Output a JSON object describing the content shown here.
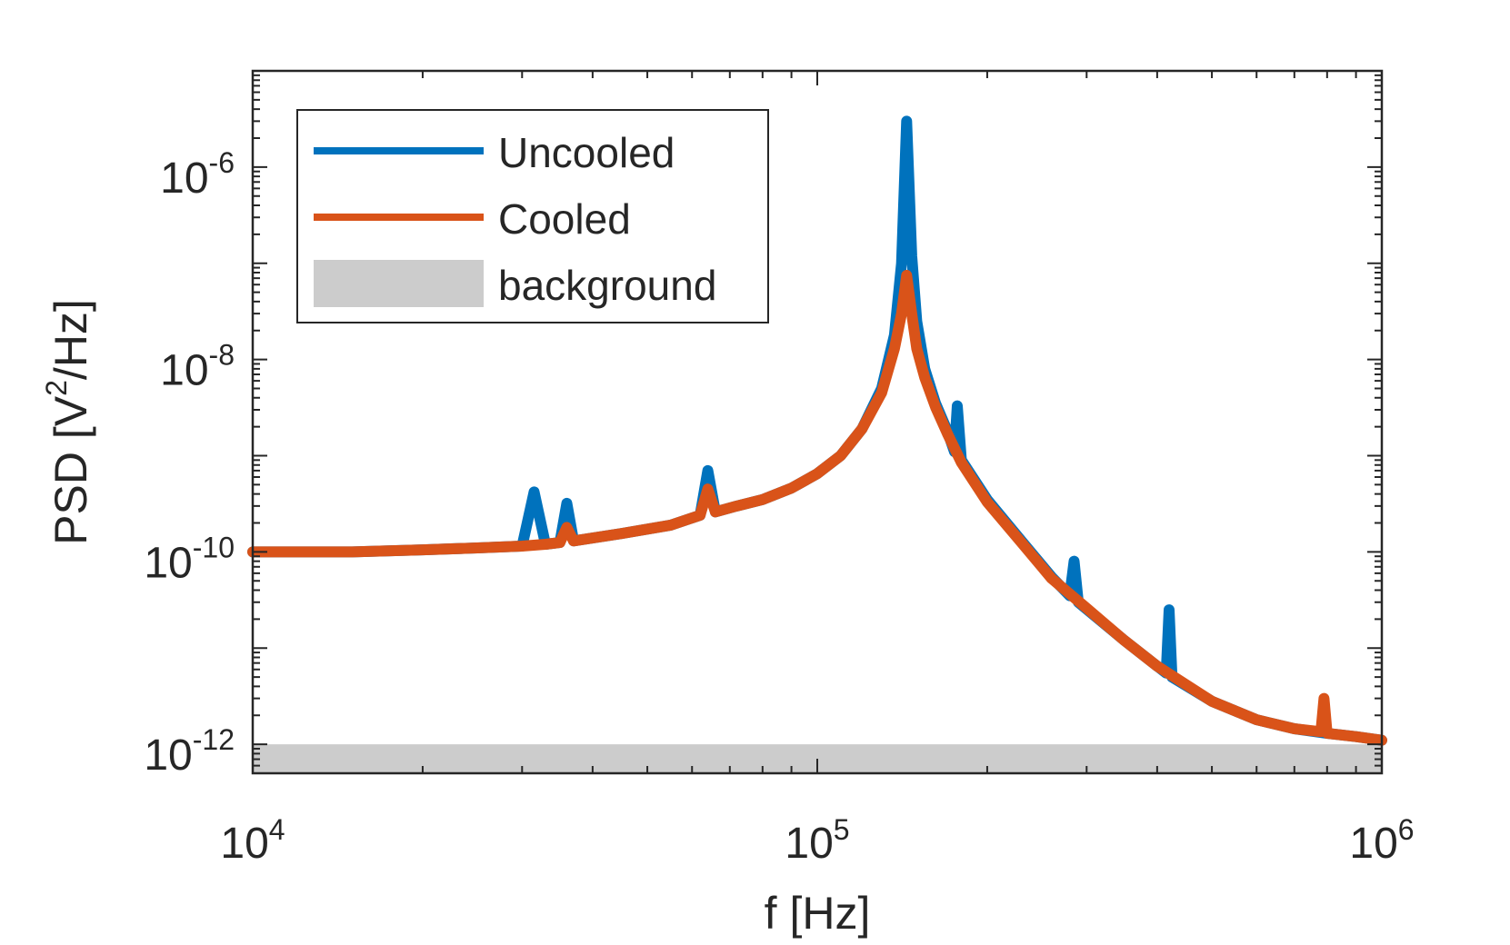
{
  "chart_data": {
    "type": "line",
    "xscale": "log",
    "yscale": "log",
    "xlim": [
      10000,
      1000000
    ],
    "ylim": [
      5e-13,
      1e-05
    ],
    "xlabel": "f [Hz]",
    "ylabel": {
      "prefix": "PSD [V",
      "sup": "2",
      "suffix": "/Hz]"
    },
    "x_ticks": [
      {
        "value": 10000,
        "base": "10",
        "exp": "4"
      },
      {
        "value": 100000,
        "base": "10",
        "exp": "5"
      },
      {
        "value": 1000000,
        "base": "10",
        "exp": "6"
      }
    ],
    "y_ticks": [
      {
        "value": 1e-12,
        "base": "10",
        "exp": "-12"
      },
      {
        "value": 1e-10,
        "base": "10",
        "exp": "-10"
      },
      {
        "value": 1e-08,
        "base": "10",
        "exp": "-8"
      },
      {
        "value": 1e-06,
        "base": "10",
        "exp": "-6"
      }
    ],
    "legend": {
      "location": "top-left",
      "entries": [
        {
          "label": "Uncooled",
          "color": "#0072BD",
          "kind": "line"
        },
        {
          "label": "Cooled",
          "color": "#D95319",
          "kind": "line"
        },
        {
          "label": "background",
          "color": "#CCCCCC",
          "kind": "patch"
        }
      ]
    },
    "background_band": {
      "label": "background",
      "level": 1e-12,
      "color": "#CCCCCC"
    },
    "series": [
      {
        "name": "Uncooled",
        "color": "#0072BD",
        "points": [
          [
            10000,
            1e-10
          ],
          [
            12000,
            1e-10
          ],
          [
            15000,
            1e-10
          ],
          [
            20000,
            1.05e-10
          ],
          [
            25000,
            1.1e-10
          ],
          [
            30000,
            1.15e-10
          ],
          [
            31500,
            4.2e-10
          ],
          [
            33000,
            1.2e-10
          ],
          [
            35000,
            1.25e-10
          ],
          [
            36000,
            3.2e-10
          ],
          [
            37000,
            1.3e-10
          ],
          [
            45000,
            1.55e-10
          ],
          [
            55000,
            1.9e-10
          ],
          [
            62000,
            2.4e-10
          ],
          [
            64000,
            7e-10
          ],
          [
            66000,
            2.6e-10
          ],
          [
            72000,
            3e-10
          ],
          [
            80000,
            3.5e-10
          ],
          [
            90000,
            4.6e-10
          ],
          [
            100000,
            6.5e-10
          ],
          [
            110000,
            1e-09
          ],
          [
            120000,
            1.9e-09
          ],
          [
            130000,
            5e-09
          ],
          [
            137000,
            1.8e-08
          ],
          [
            141000,
            1e-07
          ],
          [
            144000,
            3e-06
          ],
          [
            147000,
            1.2e-07
          ],
          [
            150000,
            2.5e-08
          ],
          [
            155000,
            8e-09
          ],
          [
            162000,
            3.5e-09
          ],
          [
            170000,
            1.8e-09
          ],
          [
            175000,
            1.1e-09
          ],
          [
            177000,
            3.3e-09
          ],
          [
            180000,
            9e-10
          ],
          [
            200000,
            3.5e-10
          ],
          [
            230000,
            1.3e-10
          ],
          [
            260000,
            5.5e-11
          ],
          [
            280000,
            3.5e-11
          ],
          [
            285000,
            8e-11
          ],
          [
            290000,
            3e-11
          ],
          [
            350000,
            1.2e-11
          ],
          [
            400000,
            6.5e-12
          ],
          [
            415000,
            5.5e-12
          ],
          [
            420000,
            2.5e-11
          ],
          [
            425000,
            5e-12
          ],
          [
            500000,
            2.8e-12
          ],
          [
            600000,
            1.8e-12
          ],
          [
            700000,
            1.45e-12
          ],
          [
            800000,
            1.3e-12
          ],
          [
            900000,
            1.2e-12
          ],
          [
            1000000,
            1.1e-12
          ]
        ]
      },
      {
        "name": "Cooled",
        "color": "#D95319",
        "points": [
          [
            10000,
            1e-10
          ],
          [
            12000,
            1e-10
          ],
          [
            15000,
            1e-10
          ],
          [
            20000,
            1.05e-10
          ],
          [
            25000,
            1.1e-10
          ],
          [
            30000,
            1.15e-10
          ],
          [
            33000,
            1.2e-10
          ],
          [
            35000,
            1.25e-10
          ],
          [
            36000,
            1.8e-10
          ],
          [
            37000,
            1.3e-10
          ],
          [
            45000,
            1.55e-10
          ],
          [
            55000,
            1.9e-10
          ],
          [
            62000,
            2.4e-10
          ],
          [
            64000,
            4.5e-10
          ],
          [
            66000,
            2.6e-10
          ],
          [
            72000,
            3e-10
          ],
          [
            80000,
            3.5e-10
          ],
          [
            90000,
            4.6e-10
          ],
          [
            100000,
            6.5e-10
          ],
          [
            110000,
            1e-09
          ],
          [
            120000,
            1.9e-09
          ],
          [
            130000,
            4.5e-09
          ],
          [
            137000,
            1.3e-08
          ],
          [
            141000,
            3e-08
          ],
          [
            144000,
            7.5e-08
          ],
          [
            147000,
            3e-08
          ],
          [
            150000,
            1.3e-08
          ],
          [
            155000,
            6.5e-09
          ],
          [
            162000,
            3.2e-09
          ],
          [
            170000,
            1.7e-09
          ],
          [
            180000,
            8.5e-10
          ],
          [
            200000,
            3.3e-10
          ],
          [
            230000,
            1.25e-10
          ],
          [
            260000,
            5.3e-11
          ],
          [
            300000,
            2.6e-11
          ],
          [
            350000,
            1.2e-11
          ],
          [
            400000,
            6.5e-12
          ],
          [
            500000,
            2.8e-12
          ],
          [
            600000,
            1.8e-12
          ],
          [
            700000,
            1.45e-12
          ],
          [
            780000,
            1.35e-12
          ],
          [
            790000,
            3e-12
          ],
          [
            800000,
            1.3e-12
          ],
          [
            900000,
            1.2e-12
          ],
          [
            1000000,
            1.1e-12
          ]
        ]
      }
    ]
  }
}
